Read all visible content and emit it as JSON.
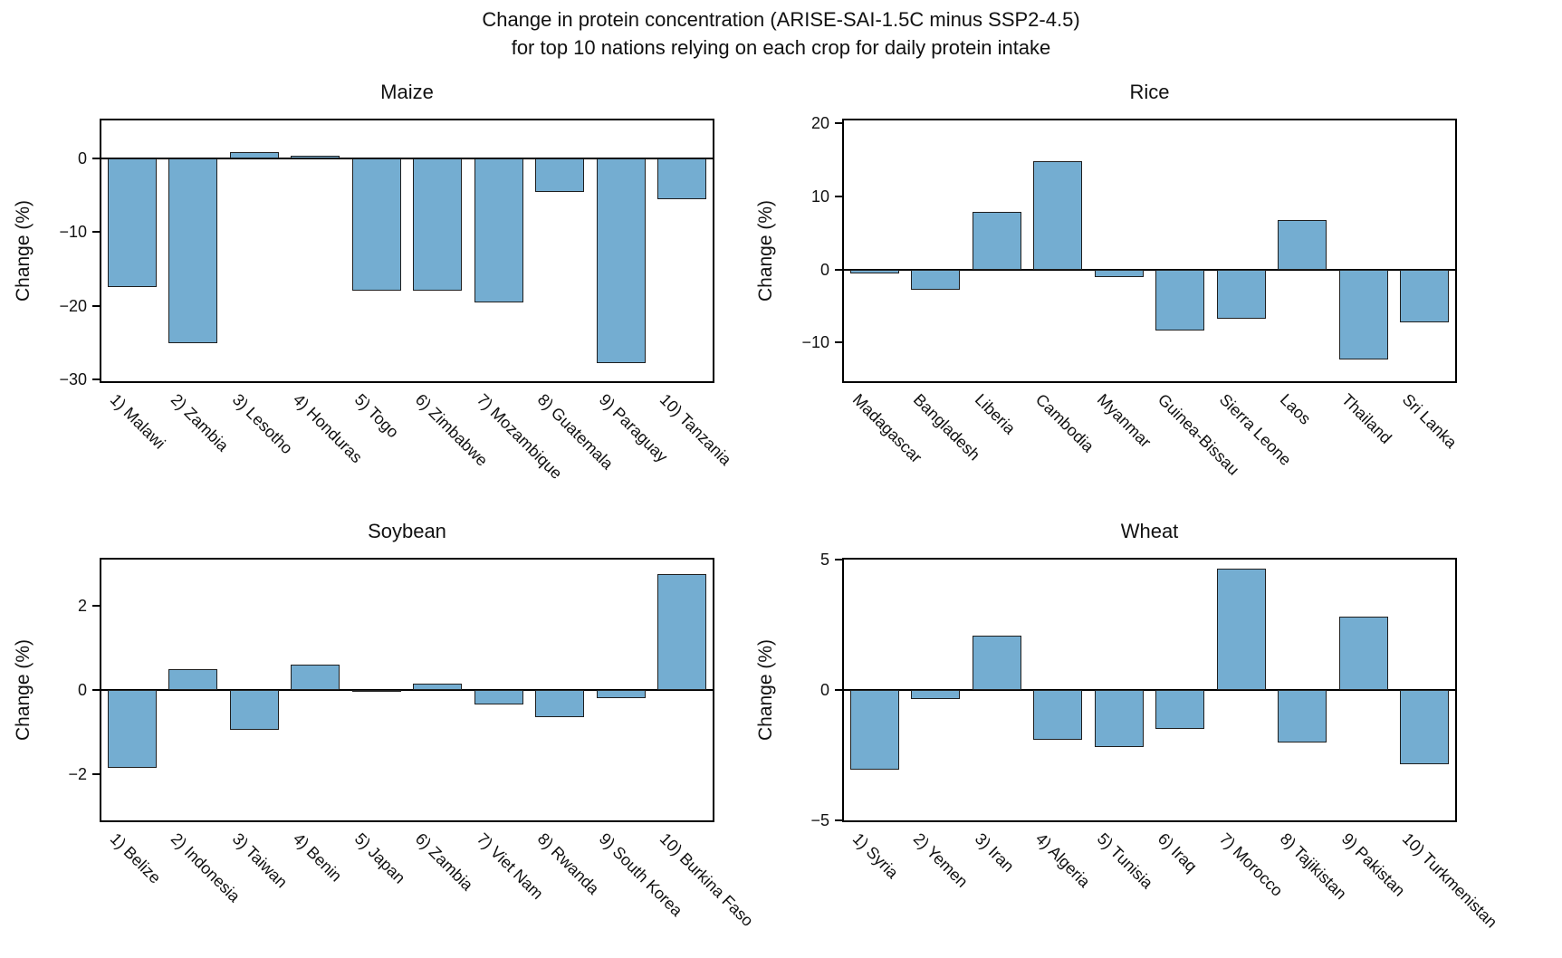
{
  "figure_title": {
    "line1": "Change in protein concentration (ARISE-SAI-1.5C minus SSP2-4.5)",
    "line2": "for top 10 nations relying on each crop for daily protein intake"
  },
  "colors": {
    "bar_fill": "#74add1",
    "bar_edge": "#1f1f1f",
    "axis": "#000000"
  },
  "chart_data": [
    {
      "type": "bar",
      "title": "Maize",
      "ylabel": "Change (%)",
      "categories": [
        "1) Malawi",
        "2) Zambia",
        "3) Lesotho",
        "4) Honduras",
        "5) Togo",
        "6) Zimbabwe",
        "7) Mozambique",
        "8) Guatemala",
        "9) Paraguay",
        "10) Tanzania"
      ],
      "values": [
        -17.5,
        -25.0,
        0.8,
        0.3,
        -18.0,
        -17.9,
        -19.5,
        -4.6,
        -27.8,
        -5.6
      ],
      "ylim": [
        -30.2,
        5.1
      ],
      "yticks": [
        0,
        -10,
        -20,
        -30
      ],
      "grid": false,
      "legend": null
    },
    {
      "type": "bar",
      "title": "Rice",
      "ylabel": "Change (%)",
      "categories": [
        "Madagascar",
        "Bangladesh",
        "Liberia",
        "Cambodia",
        "Myanmar",
        "Guinea-Bissau",
        "Sierra Leone",
        "Laos",
        "Thailand",
        "Sri Lanka"
      ],
      "values": [
        -0.6,
        -2.8,
        7.9,
        14.8,
        -1.1,
        -8.4,
        -6.8,
        6.8,
        -12.3,
        -7.3
      ],
      "ylim": [
        -15.3,
        20.4
      ],
      "yticks": [
        20,
        10,
        0,
        -10
      ],
      "grid": false,
      "legend": null
    },
    {
      "type": "bar",
      "title": "Soybean",
      "ylabel": "Change (%)",
      "categories": [
        "1) Belize",
        "2) Indonesia",
        "3) Taiwan",
        "4) Benin",
        "5) Japan",
        "6) Zambia",
        "7) Viet Nam",
        "8) Rwanda",
        "9) South Korea",
        "10) Burkina Faso"
      ],
      "values": [
        -1.85,
        0.5,
        -0.95,
        0.6,
        -0.03,
        0.15,
        -0.35,
        -0.65,
        -0.2,
        2.75
      ],
      "ylim": [
        -3.1,
        3.1
      ],
      "yticks": [
        2,
        0,
        -2
      ],
      "grid": false,
      "legend": null
    },
    {
      "type": "bar",
      "title": "Wheat",
      "ylabel": "Change (%)",
      "categories": [
        "1) Syria",
        "2) Yemen",
        "3) Iran",
        "4) Algeria",
        "5) Tunisia",
        "6) Iraq",
        "7) Morocco",
        "8) Tajikistan",
        "9) Pakistan",
        "10) Turkmenistan"
      ],
      "values": [
        -3.05,
        -0.35,
        2.1,
        -1.9,
        -2.2,
        -1.5,
        4.65,
        -2.0,
        2.8,
        -2.85
      ],
      "ylim": [
        -5,
        5
      ],
      "yticks": [
        5,
        0,
        -5
      ],
      "grid": false,
      "legend": null
    }
  ]
}
